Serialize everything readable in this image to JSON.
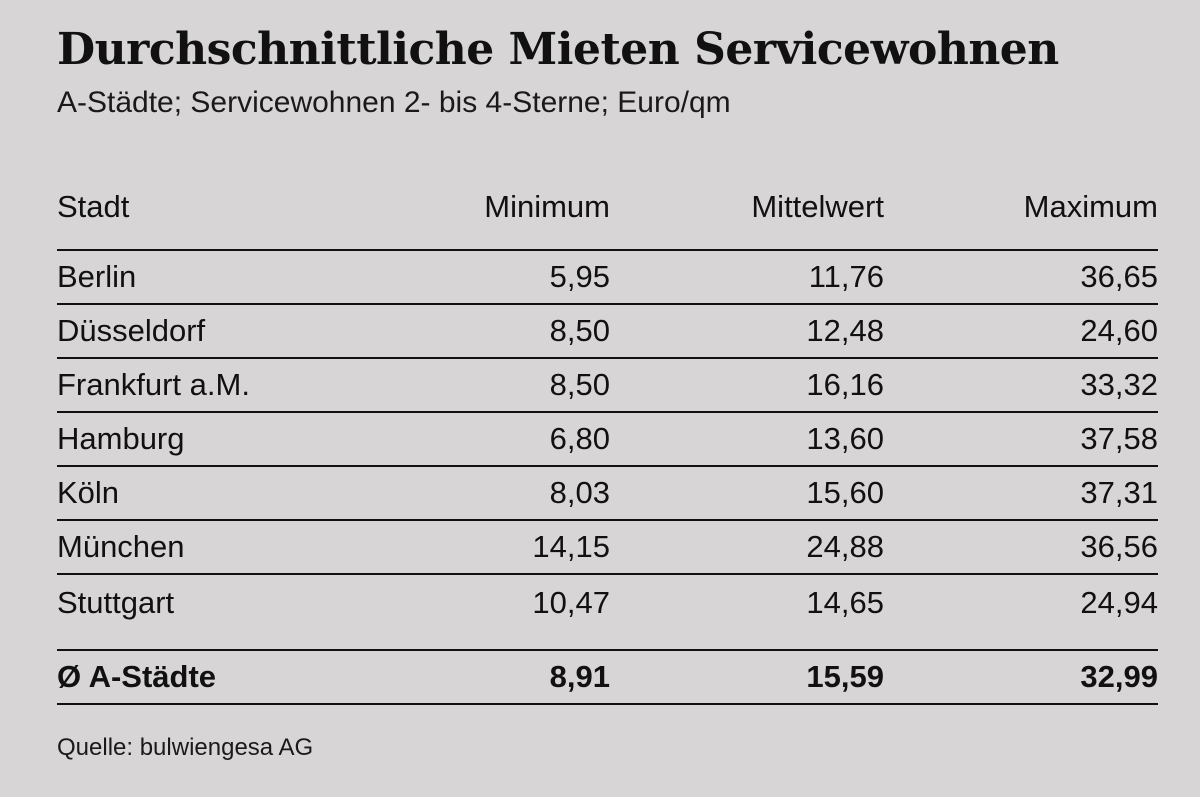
{
  "title": "Durchschnittliche Mieten Servicewohnen",
  "subtitle": "A-Städte; Servicewohnen 2- bis 4-Sterne; Euro/qm",
  "source": "Quelle: bulwiengesa AG",
  "chart_data": {
    "type": "table",
    "title": "Durchschnittliche Mieten Servicewohnen",
    "subtitle": "A-Städte; Servicewohnen 2- bis 4-Sterne; Euro/qm",
    "columns": [
      "Stadt",
      "Minimum",
      "Mittelwert",
      "Maximum"
    ],
    "rows": [
      [
        "Berlin",
        "5,95",
        "11,76",
        "36,65"
      ],
      [
        "Düsseldorf",
        "8,50",
        "12,48",
        "24,60"
      ],
      [
        "Frankfurt a.M.",
        "8,50",
        "16,16",
        "33,32"
      ],
      [
        "Hamburg",
        "6,80",
        "13,60",
        "37,58"
      ],
      [
        "Köln",
        "8,03",
        "15,60",
        "37,31"
      ],
      [
        "München",
        "14,15",
        "24,88",
        "36,56"
      ],
      [
        "Stuttgart",
        "10,47",
        "14,65",
        "24,94"
      ]
    ],
    "total": [
      "Ø A-Städte",
      "8,91",
      "15,59",
      "32,99"
    ],
    "source": "Quelle: bulwiengesa AG"
  }
}
